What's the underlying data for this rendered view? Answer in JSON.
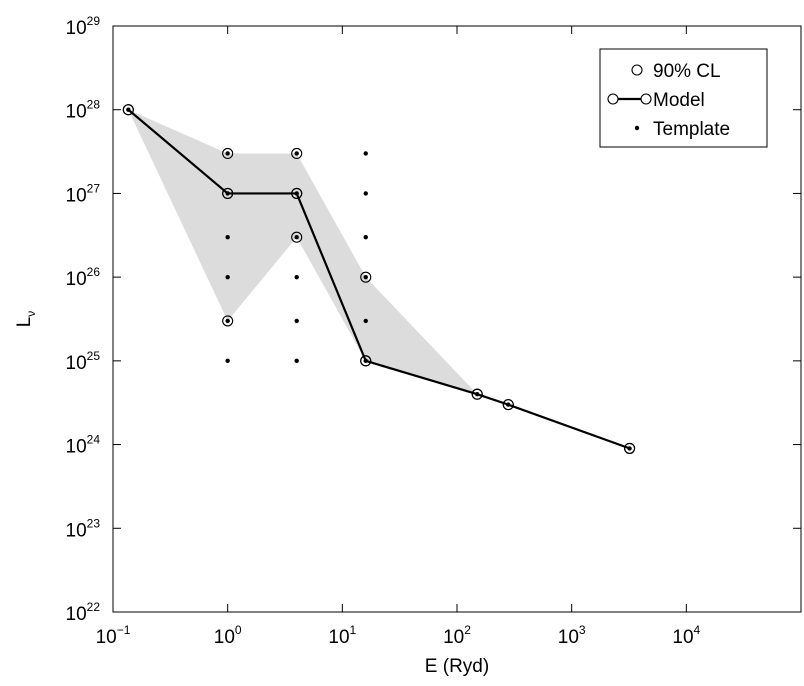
{
  "chart_data": {
    "type": "line",
    "xscale": "log",
    "yscale": "log",
    "xlim": [
      0.1,
      100000
    ],
    "ylim": [
      1e+22,
      1e+29
    ],
    "xlabel": "E (Ryd)",
    "ylabel_main": "L",
    "ylabel_sub": "ν",
    "x_ticks": [
      {
        "base": "10",
        "exp": "−1",
        "value": 0.1
      },
      {
        "base": "10",
        "exp": "0",
        "value": 1
      },
      {
        "base": "10",
        "exp": "1",
        "value": 10
      },
      {
        "base": "10",
        "exp": "2",
        "value": 100
      },
      {
        "base": "10",
        "exp": "3",
        "value": 1000
      },
      {
        "base": "10",
        "exp": "4",
        "value": 10000
      }
    ],
    "y_ticks": [
      {
        "base": "10",
        "exp": "22",
        "value": 1e+22
      },
      {
        "base": "10",
        "exp": "23",
        "value": 1e+23
      },
      {
        "base": "10",
        "exp": "24",
        "value": 1e+24
      },
      {
        "base": "10",
        "exp": "25",
        "value": 1e+25
      },
      {
        "base": "10",
        "exp": "26",
        "value": 1e+26
      },
      {
        "base": "10",
        "exp": "27",
        "value": 1e+27
      },
      {
        "base": "10",
        "exp": "28",
        "value": 1e+28
      },
      {
        "base": "10",
        "exp": "29",
        "value": 1e+29
      }
    ],
    "grid": false,
    "legend_position": "top-right",
    "legend": [
      {
        "label": "90% CL",
        "marker": "open-circle"
      },
      {
        "label": "Model",
        "marker": "line-circle"
      },
      {
        "label": "Template",
        "marker": "dot"
      }
    ],
    "confidence_band": [
      [
        0.136,
        1e+28
      ],
      [
        1,
        3e+27
      ],
      [
        4,
        3e+27
      ],
      [
        16,
        1e+26
      ],
      [
        150,
        4e+24
      ],
      [
        16,
        1e+25
      ],
      [
        4,
        3e+26
      ],
      [
        1,
        3e+25
      ]
    ],
    "cl_points": [
      [
        0.136,
        1e+28
      ],
      [
        1,
        3e+27
      ],
      [
        1,
        1e+27
      ],
      [
        1,
        3e+25
      ],
      [
        4,
        3e+27
      ],
      [
        4,
        1e+27
      ],
      [
        4,
        3e+26
      ],
      [
        16,
        1e+26
      ],
      [
        16,
        1e+25
      ],
      [
        150,
        4e+24
      ],
      [
        280,
        3e+24
      ],
      [
        3200,
        9e+23
      ]
    ],
    "model_points": [
      [
        0.136,
        1e+28
      ],
      [
        1,
        1e+27
      ],
      [
        4,
        1e+27
      ],
      [
        16,
        1e+25
      ],
      [
        150,
        4e+24
      ],
      [
        280,
        3e+24
      ],
      [
        3200,
        9e+23
      ]
    ],
    "template_points": [
      [
        0.136,
        1e+28
      ],
      [
        1,
        3e+27
      ],
      [
        1,
        1e+27
      ],
      [
        1,
        3e+26
      ],
      [
        1,
        1e+26
      ],
      [
        1,
        3e+25
      ],
      [
        1,
        1e+25
      ],
      [
        4,
        3e+27
      ],
      [
        4,
        1e+27
      ],
      [
        4,
        3e+26
      ],
      [
        4,
        1e+26
      ],
      [
        4,
        3e+25
      ],
      [
        4,
        1e+25
      ],
      [
        16,
        3e+27
      ],
      [
        16,
        1e+27
      ],
      [
        16,
        3e+26
      ],
      [
        16,
        1e+26
      ],
      [
        16,
        3e+25
      ],
      [
        16,
        1e+25
      ],
      [
        150,
        4e+24
      ],
      [
        280,
        3e+24
      ],
      [
        3200,
        9e+23
      ]
    ],
    "colors": {
      "band": "#dcdcdc",
      "line": "#000000",
      "marker": "#000000",
      "background": "#ffffff"
    }
  }
}
